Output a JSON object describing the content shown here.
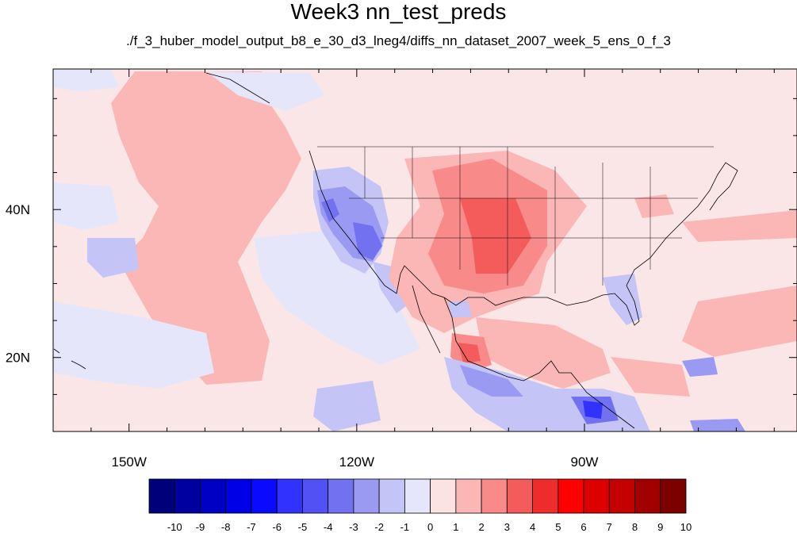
{
  "title": "Week3 nn_test_preds",
  "subtitle": "./f_3_huber_model_output_b8_e_30_d3_lneg4/diffs_nn_dataset_2007_week_5_ens_0_f_3",
  "map": {
    "lon_range": [
      -160,
      -62
    ],
    "lat_range": [
      10,
      59
    ],
    "lon_ticks": [
      {
        "lon": -150,
        "label": "150W"
      },
      {
        "lon": -120,
        "label": "120W"
      },
      {
        "lon": -90,
        "label": "90W"
      }
    ],
    "lat_ticks": [
      {
        "lat": 40,
        "label": "40N"
      },
      {
        "lat": 20,
        "label": "20N"
      }
    ],
    "features": [
      "coastlines",
      "US state boundaries"
    ]
  },
  "colorbar": {
    "labels": [
      "-10",
      "-9",
      "-8",
      "-7",
      "-6",
      "-5",
      "-4",
      "-3",
      "-2",
      "-1",
      "0",
      "1",
      "2",
      "3",
      "4",
      "5",
      "6",
      "7",
      "8",
      "9",
      "10"
    ],
    "colors": [
      "#00007a",
      "#0000a0",
      "#0000c4",
      "#0000e6",
      "#0a0aff",
      "#3232ff",
      "#5252f4",
      "#7272f0",
      "#9a9af2",
      "#c4c4f6",
      "#e6e6fb",
      "#fbe3e3",
      "#fbb6b6",
      "#f88a8a",
      "#f45c5c",
      "#ee2c2c",
      "#ff0000",
      "#dc0000",
      "#c40000",
      "#a20000",
      "#7c0000"
    ]
  },
  "colors": {
    "background_field": "#fae6e6",
    "coastline": "#000000"
  }
}
